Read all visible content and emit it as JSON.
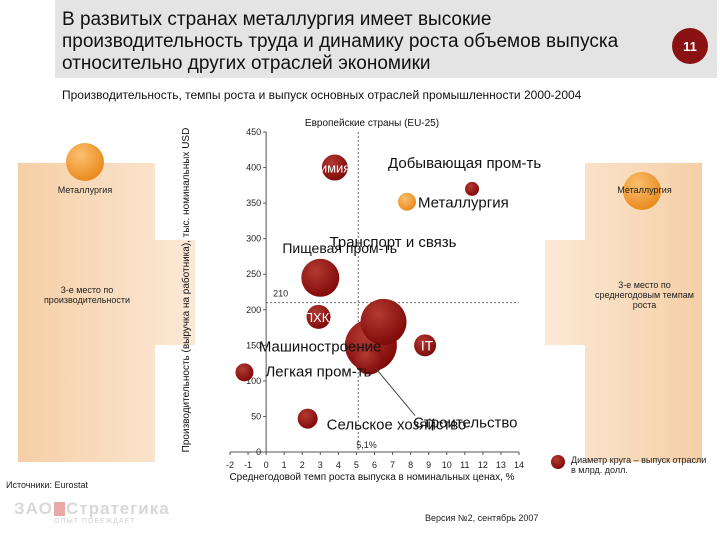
{
  "header": {
    "title": "В развитых странах металлургия имеет высокие производительность труда и динамику роста объемов выпуска относительно других отраслей экономики",
    "page_number": "11"
  },
  "subtitle": "Производительность, темпы роста и выпуск основных отраслей промышленности 2000-2004",
  "left_panel": {
    "label": "Металлургия",
    "note": "3-е место по производительности"
  },
  "right_panel": {
    "label": "Металлургия",
    "note": "3-е место по среднегодовым темпам роста"
  },
  "legend_note": "Диаметр круга – выпуск отрасли в млрд. долл.",
  "source": "Источники: Eurostat",
  "version": "Версия №2, сентябрь 2007",
  "logo": {
    "part1": "ЗАО",
    "part2": "Стратегика",
    "tagline": "ОПЫТ ПОБЕЖДАЕТ"
  },
  "colors": {
    "bubble": "#8b0a0a",
    "bubble_hi": "#b33a32",
    "metallurgy": "#f29a2e",
    "metallurgy_hi": "#fbc070",
    "panel": "#f8d9b8",
    "badge": "#8a1212"
  },
  "chart_data": {
    "type": "scatter",
    "title": "Европейские страны (EU-25)",
    "xlabel": "Среднегодовой темп роста выпуска в номинальных ценах, %",
    "ylabel": "Производительность (выручка на работника), тыс. номинальных USD",
    "xlim": [
      -2,
      14
    ],
    "ylim": [
      0,
      450
    ],
    "x_ticks": [
      -2,
      -1,
      0,
      1,
      2,
      3,
      4,
      5,
      6,
      7,
      8,
      9,
      10,
      11,
      12,
      13,
      14
    ],
    "y_ticks": [
      0,
      50,
      100,
      150,
      200,
      250,
      300,
      350,
      400,
      450
    ],
    "ref_lines": [
      {
        "axis": "y",
        "value": 210,
        "label": "210"
      },
      {
        "axis": "x",
        "value": 5.1,
        "label": "5,1%"
      }
    ],
    "size_note": "Диаметр круга – выпуск отрасли в млрд. долл.",
    "points": [
      {
        "name": "Химия",
        "x": 3.8,
        "y": 400,
        "r": 13,
        "highlight": false
      },
      {
        "name": "Добывающая пром-ть",
        "x": 11.4,
        "y": 370,
        "r": 7,
        "highlight": false
      },
      {
        "name": "Металлургия",
        "x": 7.8,
        "y": 352,
        "r": 9,
        "highlight": true
      },
      {
        "name": "Пищевая пром-ть",
        "x": 3.0,
        "y": 245,
        "r": 19,
        "highlight": false
      },
      {
        "name": "Транспорт и связь",
        "x": 6.5,
        "y": 183,
        "r": 23,
        "highlight": false
      },
      {
        "name": "ПХК",
        "x": 2.9,
        "y": 190,
        "r": 12,
        "highlight": false
      },
      {
        "name": "Машиностроение",
        "x": 5.8,
        "y": 150,
        "r": 26,
        "highlight": false
      },
      {
        "name": "IT",
        "x": 8.8,
        "y": 150,
        "r": 11,
        "highlight": false
      },
      {
        "name": "Легкая пром-ть",
        "x": -1.2,
        "y": 112,
        "r": 9,
        "highlight": false
      },
      {
        "name": "Строительство",
        "x": 5.7,
        "y": 130,
        "r": 15,
        "highlight": false
      },
      {
        "name": "Сельское хозяйство",
        "x": 2.3,
        "y": 47,
        "r": 10,
        "highlight": false
      }
    ]
  }
}
